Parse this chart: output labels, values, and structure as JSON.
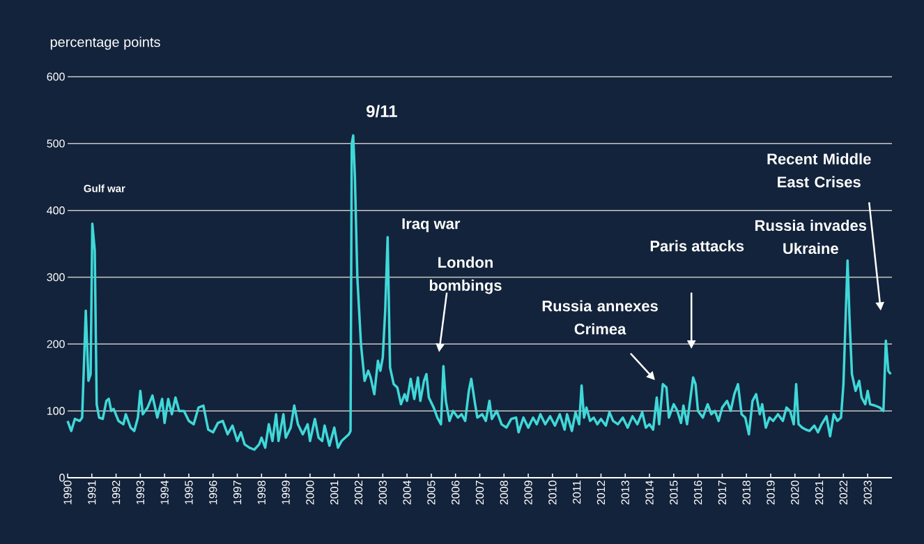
{
  "chart_data": {
    "type": "line",
    "ylabel": "percentage points",
    "x": [
      1990.0,
      1990.15,
      1990.3,
      1990.5,
      1990.6,
      1990.75,
      1990.86,
      1990.95,
      1991.02,
      1991.12,
      1991.2,
      1991.3,
      1991.45,
      1991.6,
      1991.7,
      1991.8,
      1991.9,
      1992.1,
      1992.3,
      1992.4,
      1992.6,
      1992.75,
      1992.9,
      1993.0,
      1993.1,
      1993.3,
      1993.5,
      1993.7,
      1993.9,
      1994.0,
      1994.15,
      1994.3,
      1994.45,
      1994.6,
      1994.8,
      1995.0,
      1995.2,
      1995.4,
      1995.6,
      1995.8,
      1996.0,
      1996.2,
      1996.4,
      1996.6,
      1996.8,
      1997.0,
      1997.15,
      1997.3,
      1997.5,
      1997.7,
      1997.9,
      1998.0,
      1998.15,
      1998.3,
      1998.45,
      1998.6,
      1998.7,
      1998.9,
      1999.0,
      1999.2,
      1999.35,
      1999.5,
      1999.7,
      1999.9,
      2000.0,
      2000.2,
      2000.35,
      2000.5,
      2000.6,
      2000.8,
      2001.0,
      2001.15,
      2001.3,
      2001.45,
      2001.6,
      2001.67,
      2001.72,
      2001.78,
      2001.85,
      2001.95,
      2002.1,
      2002.25,
      2002.4,
      2002.5,
      2002.65,
      2002.8,
      2002.9,
      2003.0,
      2003.1,
      2003.2,
      2003.3,
      2003.45,
      2003.6,
      2003.75,
      2003.9,
      2004.0,
      2004.15,
      2004.3,
      2004.45,
      2004.55,
      2004.7,
      2004.8,
      2004.9,
      2005.1,
      2005.25,
      2005.4,
      2005.5,
      2005.6,
      2005.75,
      2005.9,
      2006.1,
      2006.25,
      2006.4,
      2006.55,
      2006.65,
      2006.8,
      2006.9,
      2007.1,
      2007.25,
      2007.4,
      2007.5,
      2007.7,
      2007.9,
      2008.1,
      2008.3,
      2008.5,
      2008.6,
      2008.8,
      2009.0,
      2009.2,
      2009.35,
      2009.5,
      2009.7,
      2009.9,
      2010.1,
      2010.3,
      2010.5,
      2010.6,
      2010.8,
      2010.95,
      2011.1,
      2011.2,
      2011.3,
      2011.4,
      2011.55,
      2011.7,
      2011.85,
      2012.0,
      2012.2,
      2012.35,
      2012.5,
      2012.7,
      2012.9,
      2013.1,
      2013.3,
      2013.5,
      2013.7,
      2013.85,
      2014.0,
      2014.15,
      2014.3,
      2014.4,
      2014.55,
      2014.7,
      2014.8,
      2015.0,
      2015.15,
      2015.3,
      2015.4,
      2015.55,
      2015.8,
      2015.9,
      2016.0,
      2016.2,
      2016.4,
      2016.55,
      2016.7,
      2016.85,
      2017.0,
      2017.2,
      2017.35,
      2017.5,
      2017.65,
      2017.8,
      2017.95,
      2018.1,
      2018.25,
      2018.4,
      2018.55,
      2018.65,
      2018.8,
      2018.95,
      2019.1,
      2019.3,
      2019.5,
      2019.65,
      2019.8,
      2019.95,
      2020.05,
      2020.15,
      2020.3,
      2020.45,
      2020.6,
      2020.8,
      2020.95,
      2021.1,
      2021.3,
      2021.45,
      2021.6,
      2021.75,
      2021.9,
      2022.0,
      2022.1,
      2022.17,
      2022.25,
      2022.35,
      2022.5,
      2022.65,
      2022.75,
      2022.9,
      2023.0,
      2023.1,
      2023.3,
      2023.5,
      2023.65,
      2023.75,
      2023.85,
      2023.95
    ],
    "series": [
      {
        "color": "#3fd8d8",
        "values": [
          85,
          70,
          88,
          85,
          90,
          250,
          145,
          155,
          380,
          340,
          110,
          90,
          88,
          115,
          118,
          100,
          103,
          85,
          80,
          95,
          75,
          70,
          90,
          130,
          95,
          105,
          123,
          90,
          118,
          82,
          118,
          95,
          120,
          100,
          100,
          85,
          80,
          105,
          108,
          72,
          68,
          82,
          85,
          65,
          78,
          55,
          68,
          50,
          45,
          42,
          50,
          60,
          45,
          80,
          55,
          95,
          55,
          95,
          60,
          75,
          108,
          80,
          65,
          80,
          55,
          88,
          60,
          55,
          78,
          48,
          75,
          45,
          55,
          60,
          65,
          70,
          500,
          512,
          450,
          300,
          200,
          145,
          160,
          150,
          125,
          175,
          160,
          180,
          250,
          360,
          165,
          140,
          135,
          110,
          125,
          115,
          148,
          118,
          150,
          115,
          145,
          155,
          120,
          105,
          90,
          80,
          167,
          115,
          85,
          100,
          90,
          95,
          85,
          130,
          148,
          112,
          90,
          95,
          85,
          115,
          88,
          100,
          80,
          75,
          88,
          90,
          68,
          90,
          75,
          90,
          80,
          95,
          80,
          92,
          78,
          95,
          72,
          95,
          70,
          98,
          80,
          138,
          90,
          105,
          85,
          90,
          80,
          88,
          78,
          98,
          85,
          80,
          90,
          75,
          92,
          80,
          98,
          75,
          80,
          72,
          120,
          80,
          140,
          135,
          90,
          110,
          100,
          82,
          108,
          80,
          150,
          140,
          100,
          90,
          110,
          95,
          100,
          85,
          105,
          115,
          100,
          125,
          140,
          95,
          90,
          65,
          115,
          125,
          95,
          110,
          75,
          90,
          85,
          95,
          85,
          105,
          100,
          80,
          140,
          80,
          75,
          72,
          70,
          78,
          68,
          80,
          92,
          62,
          95,
          85,
          90,
          140,
          250,
          325,
          240,
          155,
          130,
          145,
          120,
          110,
          130,
          110,
          108,
          105,
          100,
          205,
          160,
          155
        ]
      }
    ],
    "xlim": [
      1990,
      2024
    ],
    "ylim": [
      0,
      600
    ],
    "xticks": [
      1990,
      1991,
      1992,
      1993,
      1994,
      1995,
      1996,
      1997,
      1998,
      1999,
      2000,
      2001,
      2002,
      2003,
      2004,
      2005,
      2006,
      2007,
      2008,
      2009,
      2010,
      2011,
      2012,
      2013,
      2014,
      2015,
      2016,
      2017,
      2018,
      2019,
      2020,
      2021,
      2022,
      2023
    ],
    "yticks": [
      0,
      100,
      200,
      300,
      400,
      500,
      600
    ],
    "grid": "y",
    "annotations": [
      "Gulf war",
      {
        "text": "9/11",
        "x": 2001.78,
        "y": 512
      },
      {
        "text": "Iraq war",
        "x": 2003.2,
        "y": 360
      },
      "London bombings",
      "Russia annexes Crimea",
      "Paris attacks",
      {
        "text": "Russia invades Ukraine",
        "x": 2022.17,
        "y": 325
      },
      "Recent Middle East Crises"
    ]
  }
}
